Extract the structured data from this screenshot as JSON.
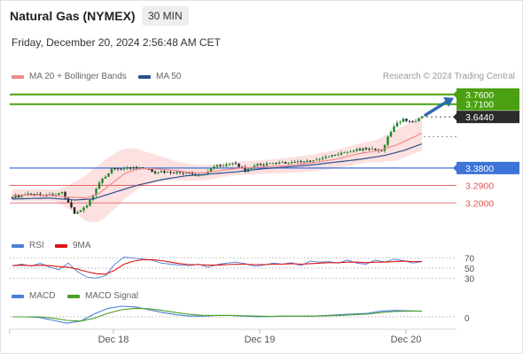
{
  "header": {
    "title": "Natural Gas (NYMEX)",
    "timeframe": "30 MIN",
    "datetime": "Friday, December 20, 2024 2:56:48 AM CET",
    "credit": "Research © 2024 Trading Central"
  },
  "legends": {
    "main": [
      {
        "label": "MA 20 + Bollinger Bands",
        "color": "#f08a8a"
      },
      {
        "label": "MA 50",
        "color": "#2b4f8c"
      }
    ],
    "rsi": [
      {
        "label": "RSI",
        "color": "#4a7fd9"
      },
      {
        "label": "9MA",
        "color": "#dd1111"
      }
    ],
    "macd": [
      {
        "label": "MACD",
        "color": "#4a7fd9"
      },
      {
        "label": "MACD Signal",
        "color": "#4aa028"
      }
    ]
  },
  "colors": {
    "bull_candle": "#1a8a2a",
    "bear_candle": "#222222",
    "band_fill": "#fde0e0",
    "ma20": "#f08a8a",
    "ma50": "#2b4f8c",
    "resistance": "#4aa010",
    "support": "#e05555",
    "pivot": "#3d74d8",
    "current": "#2b2b2b",
    "arrow": "#2f6ab0"
  },
  "chart_data": [
    {
      "type": "candlestick",
      "title": "Natural Gas (NYMEX)",
      "timeframe": "30 MIN",
      "xlabels": [
        "Dec 18",
        "Dec 19",
        "Dec 20"
      ],
      "ylim": [
        3.16,
        3.8
      ],
      "levels": [
        {
          "label": "3.7600",
          "value": 3.76,
          "kind": "resistance"
        },
        {
          "label": "3.7100",
          "value": 3.71,
          "kind": "resistance"
        },
        {
          "label": "3.6440",
          "value": 3.644,
          "kind": "current"
        },
        {
          "label": "3.3800",
          "value": 3.38,
          "kind": "pivot"
        },
        {
          "label": "3.2900",
          "value": 3.29,
          "kind": "support"
        },
        {
          "label": "3.2000",
          "value": 3.2,
          "kind": "support"
        }
      ],
      "close_path": [
        [
          0,
          3.23
        ],
        [
          6,
          3.245
        ],
        [
          12,
          3.24
        ],
        [
          16,
          3.25
        ],
        [
          17,
          3.22
        ],
        [
          19,
          3.175
        ],
        [
          20,
          3.15
        ],
        [
          22,
          3.16
        ],
        [
          24,
          3.19
        ],
        [
          26,
          3.24
        ],
        [
          28,
          3.3
        ],
        [
          30,
          3.34
        ],
        [
          32,
          3.375
        ],
        [
          34,
          3.38
        ],
        [
          38,
          3.38
        ],
        [
          42,
          3.378
        ],
        [
          44,
          3.37
        ],
        [
          46,
          3.36
        ],
        [
          50,
          3.36
        ],
        [
          56,
          3.355
        ],
        [
          58,
          3.345
        ],
        [
          60,
          3.34
        ],
        [
          62,
          3.35
        ],
        [
          64,
          3.38
        ],
        [
          66,
          3.395
        ],
        [
          68,
          3.395
        ],
        [
          70,
          3.4
        ],
        [
          72,
          3.4
        ],
        [
          74,
          3.38
        ],
        [
          75,
          3.355
        ],
        [
          76,
          3.37
        ],
        [
          78,
          3.395
        ],
        [
          82,
          3.4
        ],
        [
          86,
          3.405
        ],
        [
          90,
          3.41
        ],
        [
          94,
          3.415
        ],
        [
          98,
          3.42
        ],
        [
          102,
          3.44
        ],
        [
          106,
          3.455
        ],
        [
          110,
          3.47
        ],
        [
          113,
          3.48
        ],
        [
          115,
          3.48
        ],
        [
          117,
          3.47
        ],
        [
          119,
          3.465
        ],
        [
          120,
          3.505
        ],
        [
          122,
          3.57
        ],
        [
          124,
          3.615
        ],
        [
          126,
          3.63
        ],
        [
          128,
          3.625
        ],
        [
          130,
          3.62
        ],
        [
          132,
          3.644
        ]
      ],
      "ma20_path": [
        [
          0,
          3.24
        ],
        [
          12,
          3.24
        ],
        [
          18,
          3.23
        ],
        [
          24,
          3.225
        ],
        [
          28,
          3.25
        ],
        [
          32,
          3.3
        ],
        [
          36,
          3.35
        ],
        [
          40,
          3.375
        ],
        [
          44,
          3.378
        ],
        [
          50,
          3.372
        ],
        [
          56,
          3.36
        ],
        [
          60,
          3.355
        ],
        [
          64,
          3.36
        ],
        [
          68,
          3.37
        ],
        [
          74,
          3.38
        ],
        [
          80,
          3.385
        ],
        [
          88,
          3.392
        ],
        [
          96,
          3.405
        ],
        [
          104,
          3.425
        ],
        [
          112,
          3.455
        ],
        [
          118,
          3.47
        ],
        [
          124,
          3.5
        ],
        [
          128,
          3.53
        ],
        [
          132,
          3.56
        ]
      ],
      "ma50_path": [
        [
          0,
          3.22
        ],
        [
          12,
          3.225
        ],
        [
          20,
          3.215
        ],
        [
          26,
          3.22
        ],
        [
          32,
          3.25
        ],
        [
          40,
          3.29
        ],
        [
          48,
          3.32
        ],
        [
          56,
          3.34
        ],
        [
          64,
          3.35
        ],
        [
          72,
          3.36
        ],
        [
          80,
          3.375
        ],
        [
          88,
          3.385
        ],
        [
          96,
          3.395
        ],
        [
          104,
          3.41
        ],
        [
          112,
          3.425
        ],
        [
          120,
          3.445
        ],
        [
          126,
          3.47
        ],
        [
          132,
          3.505
        ]
      ],
      "band_width": [
        [
          0,
          0.03
        ],
        [
          14,
          0.03
        ],
        [
          18,
          0.06
        ],
        [
          22,
          0.1
        ],
        [
          26,
          0.14
        ],
        [
          30,
          0.15
        ],
        [
          34,
          0.14
        ],
        [
          38,
          0.12
        ],
        [
          44,
          0.08
        ],
        [
          52,
          0.05
        ],
        [
          60,
          0.04
        ],
        [
          70,
          0.035
        ],
        [
          80,
          0.035
        ],
        [
          100,
          0.045
        ],
        [
          116,
          0.055
        ],
        [
          124,
          0.08
        ],
        [
          132,
          0.09
        ]
      ],
      "candle_count": 133
    },
    {
      "type": "line",
      "name": "RSI",
      "ylim": [
        20,
        80
      ],
      "yticks": [
        70,
        50,
        30
      ],
      "series": [
        {
          "name": "RSI",
          "values": [
            55,
            58,
            54,
            60,
            52,
            47,
            60,
            43,
            32,
            30,
            35,
            58,
            72,
            70,
            68,
            66,
            60,
            58,
            56,
            55,
            58,
            52,
            57,
            60,
            62,
            59,
            54,
            56,
            60,
            58,
            61,
            55,
            64,
            62,
            63,
            60,
            66,
            60,
            58,
            66,
            62,
            68,
            65,
            60,
            63
          ]
        },
        {
          "name": "9MA",
          "values": [
            55,
            56,
            55,
            56,
            55,
            53,
            52,
            48,
            43,
            39,
            38,
            46,
            58,
            64,
            67,
            67,
            65,
            62,
            59,
            57,
            57,
            56,
            56,
            57,
            58,
            58,
            57,
            57,
            58,
            58,
            59,
            58,
            59,
            60,
            61,
            61,
            62,
            62,
            61,
            62,
            62,
            63,
            64,
            63,
            63
          ]
        }
      ]
    },
    {
      "type": "line",
      "name": "MACD",
      "yticks": [
        0
      ],
      "series": [
        {
          "name": "MACD",
          "values": [
            0.0,
            0.0,
            -0.002,
            -0.01,
            -0.018,
            -0.012,
            0.008,
            0.024,
            0.03,
            0.028,
            0.02,
            0.012,
            0.006,
            0.002,
            0.002,
            0.004,
            0.004,
            0.002,
            0.0,
            0.001,
            0.002,
            0.002,
            0.002,
            0.004,
            0.006,
            0.008,
            0.01,
            0.016,
            0.018,
            0.017,
            0.016
          ]
        },
        {
          "name": "MACD Signal",
          "values": [
            0.0,
            0.0,
            0.0,
            -0.004,
            -0.01,
            -0.012,
            -0.004,
            0.01,
            0.02,
            0.024,
            0.023,
            0.018,
            0.012,
            0.007,
            0.004,
            0.004,
            0.004,
            0.003,
            0.002,
            0.001,
            0.002,
            0.002,
            0.002,
            0.003,
            0.004,
            0.006,
            0.008,
            0.012,
            0.015,
            0.016,
            0.016
          ]
        }
      ]
    }
  ]
}
